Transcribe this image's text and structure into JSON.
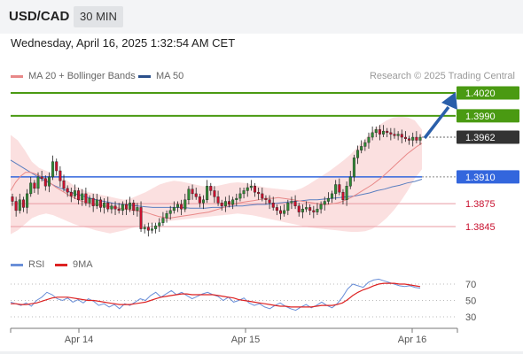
{
  "header": {
    "symbol": "USD/CAD",
    "timeframe": "30 MIN"
  },
  "datetime": "Wednesday, April 16, 2025 1:32:54 AM CET",
  "legend": {
    "ma20_label": "MA 20 + Bollinger Bands",
    "ma50_label": "MA 50",
    "credit": "Research © 2025 Trading Central",
    "rsi_label": "RSI",
    "rsi_ma_label": "9MA"
  },
  "colors": {
    "candle_up": "#2f8a35",
    "candle_down": "#c8102e",
    "bollinger_fill": "#fadbdb",
    "ma20": "#e88888",
    "ma50": "#5b7fc0",
    "resistance": "#4a9a12",
    "pivot": "#3366dd",
    "support": "#dd3344",
    "current": "#333333",
    "rsi": "#6a8fd8",
    "rsi_ma": "#dd2222",
    "arrow": "#2a5faa"
  },
  "chart_data": {
    "type": "candlestick",
    "x_ticks": [
      "Apr 14",
      "Apr 15",
      "Apr 16"
    ],
    "ylim": [
      1.3828,
      1.4041
    ],
    "levels": [
      {
        "label": "1.4020",
        "value": 1.402,
        "kind": "resistance"
      },
      {
        "label": "1.3990",
        "value": 1.399,
        "kind": "resistance"
      },
      {
        "label": "1.3962",
        "value": 1.3962,
        "kind": "current"
      },
      {
        "label": "1.3910",
        "value": 1.391,
        "kind": "pivot"
      },
      {
        "label": "1.3875",
        "value": 1.3875,
        "kind": "support"
      },
      {
        "label": "1.3845",
        "value": 1.3845,
        "kind": "support"
      }
    ],
    "closes": [
      1.3878,
      1.3866,
      1.388,
      1.387,
      1.3888,
      1.3902,
      1.3895,
      1.391,
      1.3908,
      1.3898,
      1.391,
      1.393,
      1.3918,
      1.3905,
      1.3895,
      1.389,
      1.3885,
      1.3892,
      1.388,
      1.3888,
      1.3876,
      1.3882,
      1.3872,
      1.388,
      1.387,
      1.3876,
      1.3868,
      1.3872,
      1.3868,
      1.3866,
      1.3874,
      1.3868,
      1.3876,
      1.3866,
      1.387,
      1.3842,
      1.3844,
      1.384,
      1.3842,
      1.3846,
      1.385,
      1.3856,
      1.3862,
      1.3866,
      1.387,
      1.3874,
      1.3868,
      1.388,
      1.3894,
      1.3888,
      1.3884,
      1.3876,
      1.388,
      1.3898,
      1.3892,
      1.3884,
      1.3876,
      1.3872,
      1.3878,
      1.3874,
      1.388,
      1.3882,
      1.3888,
      1.3892,
      1.3896,
      1.3898,
      1.389,
      1.3888,
      1.3882,
      1.388,
      1.3876,
      1.387,
      1.3866,
      1.3862,
      1.3866,
      1.3876,
      1.3878,
      1.3872,
      1.3864,
      1.3868,
      1.387,
      1.3866,
      1.3864,
      1.3868,
      1.3874,
      1.3878,
      1.3882,
      1.3888,
      1.39,
      1.389,
      1.388,
      1.3898,
      1.391,
      1.3935,
      1.3945,
      1.395,
      1.3955,
      1.3962,
      1.3968,
      1.3972,
      1.3966,
      1.397,
      1.3968,
      1.3966,
      1.3964,
      1.3966,
      1.3962,
      1.396,
      1.3958,
      1.3962,
      1.3958,
      1.3962
    ],
    "ma20": [
      1.3892,
      1.3903,
      1.3911,
      1.3916,
      1.3916,
      1.3914,
      1.3911,
      1.3907,
      1.3902,
      1.3897,
      1.3893,
      1.3889,
      1.3885,
      1.3882,
      1.3879,
      1.3877,
      1.3875,
      1.3874,
      1.3873,
      1.3872,
      1.3871,
      1.387,
      1.3869,
      1.3868,
      1.3867,
      1.3866,
      1.3865,
      1.3864,
      1.3862,
      1.386,
      1.3858,
      1.3857,
      1.3856,
      1.3857,
      1.3858,
      1.3859,
      1.386,
      1.3861,
      1.3862,
      1.3863,
      1.3864,
      1.3866,
      1.3868,
      1.387,
      1.3872,
      1.3874,
      1.3876,
      1.3877,
      1.3878,
      1.3879,
      1.388,
      1.3881,
      1.3882,
      1.3882,
      1.3883,
      1.3882,
      1.3881,
      1.388,
      1.3879,
      1.3878,
      1.3877,
      1.3876,
      1.3875,
      1.3874,
      1.3874,
      1.3875,
      1.3876,
      1.3878,
      1.3881,
      1.3884,
      1.3888,
      1.3892,
      1.3896,
      1.39,
      1.3905,
      1.391,
      1.3916,
      1.3922,
      1.3928,
      1.3934,
      1.394,
      1.3945,
      1.395,
      1.3954
    ],
    "ma50": [
      1.3932,
      1.3926,
      1.392,
      1.3914,
      1.3908,
      1.3903,
      1.3898,
      1.3894,
      1.389,
      1.3887,
      1.3884,
      1.3881,
      1.3879,
      1.3877,
      1.3875,
      1.3874,
      1.3873,
      1.3872,
      1.3871,
      1.387,
      1.387,
      1.387,
      1.387,
      1.387,
      1.3869,
      1.3869,
      1.3869,
      1.387,
      1.387,
      1.3871,
      1.3872,
      1.3872,
      1.3873,
      1.3874,
      1.3874,
      1.3875,
      1.3876,
      1.3877,
      1.3878,
      1.3879,
      1.388,
      1.388,
      1.3881,
      1.3882,
      1.3883,
      1.3884,
      1.3885,
      1.3887,
      1.3889,
      1.3892,
      1.3894,
      1.3897,
      1.3899,
      1.3902,
      1.3904,
      1.3907
    ],
    "bb_upper": [
      1.3965,
      1.3958,
      1.3945,
      1.393,
      1.3922,
      1.3918,
      1.3914,
      1.391,
      1.3905,
      1.3898,
      1.3894,
      1.389,
      1.3888,
      1.3886,
      1.3884,
      1.3882,
      1.388,
      1.3882,
      1.3886,
      1.389,
      1.3895,
      1.39,
      1.3903,
      1.3905,
      1.3904,
      1.3902,
      1.39,
      1.3898,
      1.3897,
      1.3898,
      1.39,
      1.3902,
      1.3903,
      1.3902,
      1.39,
      1.3898,
      1.3896,
      1.3895,
      1.3894,
      1.3893,
      1.3892,
      1.3895,
      1.39,
      1.3906,
      1.3912,
      1.3918,
      1.3925,
      1.3932,
      1.394,
      1.395,
      1.396,
      1.397,
      1.3978,
      1.3984,
      1.3988,
      1.3989,
      1.3988,
      1.3984,
      1.3972
    ],
    "bb_lower": [
      1.3835,
      1.384,
      1.3848,
      1.3856,
      1.386,
      1.3862,
      1.386,
      1.3856,
      1.3852,
      1.3848,
      1.3845,
      1.3843,
      1.384,
      1.3838,
      1.3836,
      1.3838,
      1.384,
      1.3843,
      1.3845,
      1.3847,
      1.3849,
      1.3851,
      1.3852,
      1.3853,
      1.3854,
      1.3855,
      1.3856,
      1.3857,
      1.3858,
      1.3859,
      1.386,
      1.3861,
      1.3862,
      1.3861,
      1.386,
      1.3858,
      1.3856,
      1.3854,
      1.3852,
      1.385,
      1.3848,
      1.3846,
      1.3844,
      1.3843,
      1.3842,
      1.3841,
      1.384,
      1.3839,
      1.3838,
      1.3838,
      1.3839,
      1.3842,
      1.3848,
      1.3856,
      1.3866,
      1.3878,
      1.3892,
      1.3908,
      1.392
    ],
    "rsi": {
      "ticks": [
        "70",
        "50",
        "30"
      ],
      "ylim": [
        20,
        80
      ],
      "rsi": [
        48,
        46,
        44,
        47,
        43,
        50,
        54,
        60,
        57,
        52,
        50,
        53,
        48,
        51,
        47,
        52,
        49,
        44,
        46,
        42,
        45,
        40,
        46,
        44,
        48,
        52,
        50,
        56,
        60,
        54,
        58,
        62,
        57,
        60,
        56,
        52,
        55,
        58,
        60,
        57,
        55,
        50,
        54,
        48,
        50,
        53,
        47,
        44,
        46,
        42,
        40,
        44,
        47,
        43,
        40,
        38,
        42,
        45,
        41,
        44,
        48,
        44,
        41,
        46,
        54,
        64,
        70,
        68,
        66,
        72,
        75,
        76,
        74,
        72,
        70,
        68,
        67,
        68,
        66,
        65
      ],
      "ma": [
        46,
        46,
        45,
        45,
        46,
        47,
        49,
        51,
        53,
        54,
        54,
        54,
        53,
        52,
        51,
        50,
        50,
        49,
        48,
        47,
        46,
        45,
        45,
        45,
        46,
        47,
        48,
        50,
        52,
        54,
        55,
        56,
        57,
        58,
        58,
        57,
        57,
        57,
        57,
        57,
        56,
        55,
        54,
        53,
        51,
        50,
        49,
        48,
        47,
        46,
        45,
        44,
        43,
        43,
        42,
        42,
        42,
        42,
        42,
        43,
        44,
        44,
        44,
        45,
        47,
        51,
        56,
        60,
        63,
        65,
        68,
        70,
        71,
        71,
        71,
        70,
        70,
        69,
        68,
        67
      ]
    }
  }
}
